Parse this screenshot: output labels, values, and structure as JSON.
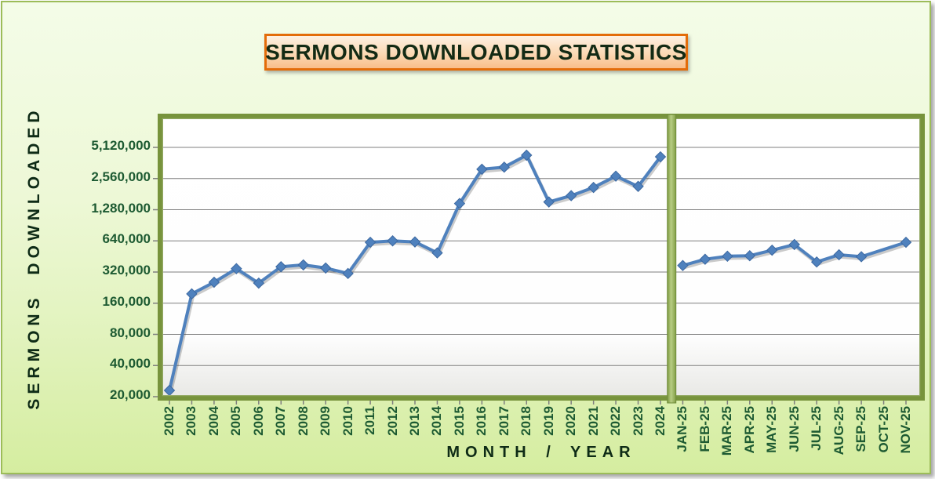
{
  "page": {
    "title_box": {
      "text": "SERMONS DOWNLOADED STATISTICS"
    },
    "colors": {
      "panel_background_top": "#F4FCE8",
      "panel_background_bottom": "#D5EDA0",
      "panel_border": "#9CBC59",
      "title_border": "#E36C0A",
      "title_background": "#FBD9B4",
      "title_text": "#132A14",
      "plot_border": "#77933C",
      "period_divider": "#A9C470",
      "gridline": "#7F7F7F",
      "series_line": "#4F81BD",
      "tick_label_text": "#1D5A32",
      "axis_title_text": "#0E2B16"
    }
  },
  "chart_data": {
    "type": "line",
    "title": "SERMONS DOWNLOADED STATISTICS",
    "xlabel": "MONTH / YEAR",
    "ylabel": "SERMONS DOWNLOADED",
    "y_scale": "log2",
    "grid": true,
    "legend": "none",
    "y_ticks": [
      20000,
      40000,
      80000,
      160000,
      320000,
      640000,
      1280000,
      2560000,
      5120000
    ],
    "y_tick_labels": [
      "20,000",
      "40,000",
      "80,000",
      "160,000",
      "320,000",
      "640,000",
      "1,280,000",
      "2,560,000",
      "5,120,000"
    ],
    "categories": [
      "2002",
      "2003",
      "2004",
      "2005",
      "2006",
      "2007",
      "2008",
      "2009",
      "2010",
      "2011",
      "2012",
      "2013",
      "2014",
      "2015",
      "2016",
      "2017",
      "2018",
      "2019",
      "2020",
      "2021",
      "2022",
      "2023",
      "2024",
      "JAN-25",
      "FEB-25",
      "MAR-25",
      "APR-25",
      "MAY-25",
      "JUN-25",
      "JUL-25",
      "AUG-25",
      "SEP-25",
      "OCT-25",
      "NOV-25"
    ],
    "series": [
      {
        "color": "#4F81BD",
        "marker": "diamond",
        "values": [
          23000,
          197000,
          255000,
          345000,
          250000,
          360000,
          375000,
          350000,
          310000,
          620000,
          640000,
          625000,
          490000,
          1470000,
          3150000,
          3300000,
          4300000,
          1520000,
          1750000,
          2100000,
          2700000,
          2150000,
          4150000,
          370000,
          425000,
          455000,
          460000,
          520000,
          590000,
          400000,
          470000,
          450000,
          null,
          620000
        ]
      }
    ],
    "divider_after_category": "2024",
    "notes": "OCT-25 shows no marker; the line connects SEP-25 directly to NOV-25"
  }
}
